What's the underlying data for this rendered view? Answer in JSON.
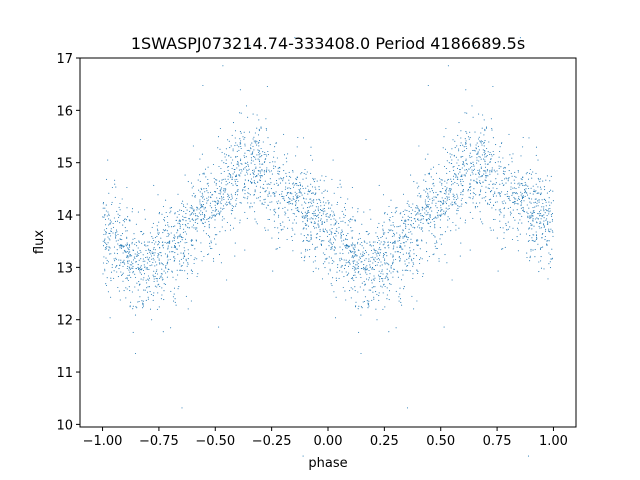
{
  "chart_data": {
    "type": "scatter",
    "title": "1SWASPJ073214.74-333408.0 Period 4186689.5s",
    "xlabel": "phase",
    "ylabel": "flux",
    "xlim": [
      -1.1,
      1.1
    ],
    "ylim": [
      9.95,
      17.0
    ],
    "xticks": [
      -1.0,
      -0.75,
      -0.5,
      -0.25,
      0.0,
      0.25,
      0.5,
      0.75,
      1.0
    ],
    "xtick_labels": [
      "−1.00",
      "−0.75",
      "−0.50",
      "−0.25",
      "0.00",
      "0.25",
      "0.50",
      "0.75",
      "1.00"
    ],
    "yticks": [
      10,
      11,
      12,
      13,
      14,
      15,
      16,
      17
    ],
    "ytick_labels": [
      "10",
      "11",
      "12",
      "13",
      "14",
      "15",
      "16",
      "17"
    ],
    "grid": false,
    "marker_color": "#1f77b4",
    "series": [
      {
        "x_range": [
          -1.0,
          1.0
        ],
        "description_points": [
          {
            "phase": -1.0,
            "flux": 13.7
          },
          {
            "phase": -0.9,
            "flux": 13.2
          },
          {
            "phase": -0.82,
            "flux": 13.0
          },
          {
            "phase": -0.7,
            "flux": 13.3
          },
          {
            "phase": -0.6,
            "flux": 13.8
          },
          {
            "phase": -0.5,
            "flux": 14.3
          },
          {
            "phase": -0.4,
            "flux": 14.8
          },
          {
            "phase": -0.3,
            "flux": 14.9
          },
          {
            "phase": -0.2,
            "flux": 14.4
          },
          {
            "phase": -0.1,
            "flux": 14.1
          },
          {
            "phase": 0.0,
            "flux": 13.7
          },
          {
            "phase": 0.1,
            "flux": 13.2
          },
          {
            "phase": 0.18,
            "flux": 13.0
          },
          {
            "phase": 0.3,
            "flux": 13.3
          },
          {
            "phase": 0.4,
            "flux": 13.8
          },
          {
            "phase": 0.5,
            "flux": 14.3
          },
          {
            "phase": 0.6,
            "flux": 14.8
          },
          {
            "phase": 0.7,
            "flux": 14.9
          },
          {
            "phase": 0.8,
            "flux": 14.4
          },
          {
            "phase": 0.9,
            "flux": 14.1
          },
          {
            "phase": 1.0,
            "flux": 13.7
          }
        ]
      }
    ]
  }
}
